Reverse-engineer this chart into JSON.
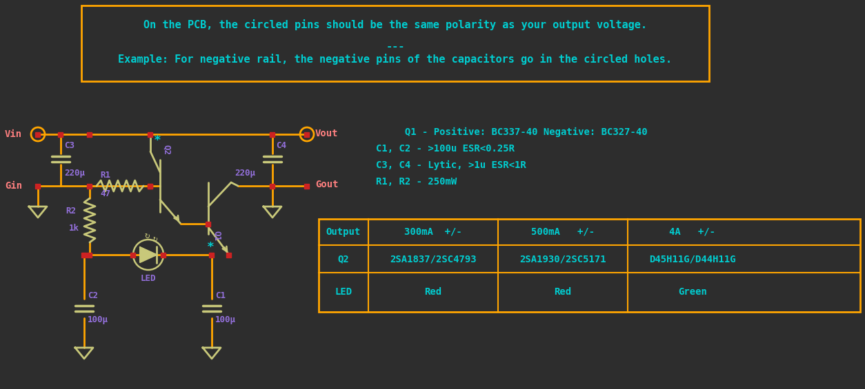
{
  "bg_color": "#2d2d2d",
  "orange": "#FFA500",
  "teal": "#00CED1",
  "purple": "#9370DB",
  "salmon": "#FF8080",
  "olive": "#C8C87A",
  "red_dot": "#CC2222",
  "title_line1": "On the PCB, the circled pins should be the same polarity as your output voltage.",
  "title_sep": "---",
  "title_line2": "Example: For negative rail, the negative pins of the capacitors go in the circled holes.",
  "spec_line1": "     Q1 - Positive: BC337-40 Negative: BC327-40",
  "spec_line2": "C1, C2 - >100u ESR<0.25R",
  "spec_line3": "C3, C4 - Lytic, >1u ESR<1R",
  "spec_line4": "R1, R2 - 250mW",
  "table_headers": [
    "Output",
    "300mA  +/-",
    "500mA   +/-",
    "4A   +/-"
  ],
  "table_row1_label": "Q2",
  "table_row1_vals": [
    "2SA1837/2SC4793",
    "2SA1930/2SC5171",
    "D45H11G/D44H11G"
  ],
  "table_row2_label": "LED",
  "table_row2_vals": [
    "Red",
    "Red",
    "Green"
  ]
}
